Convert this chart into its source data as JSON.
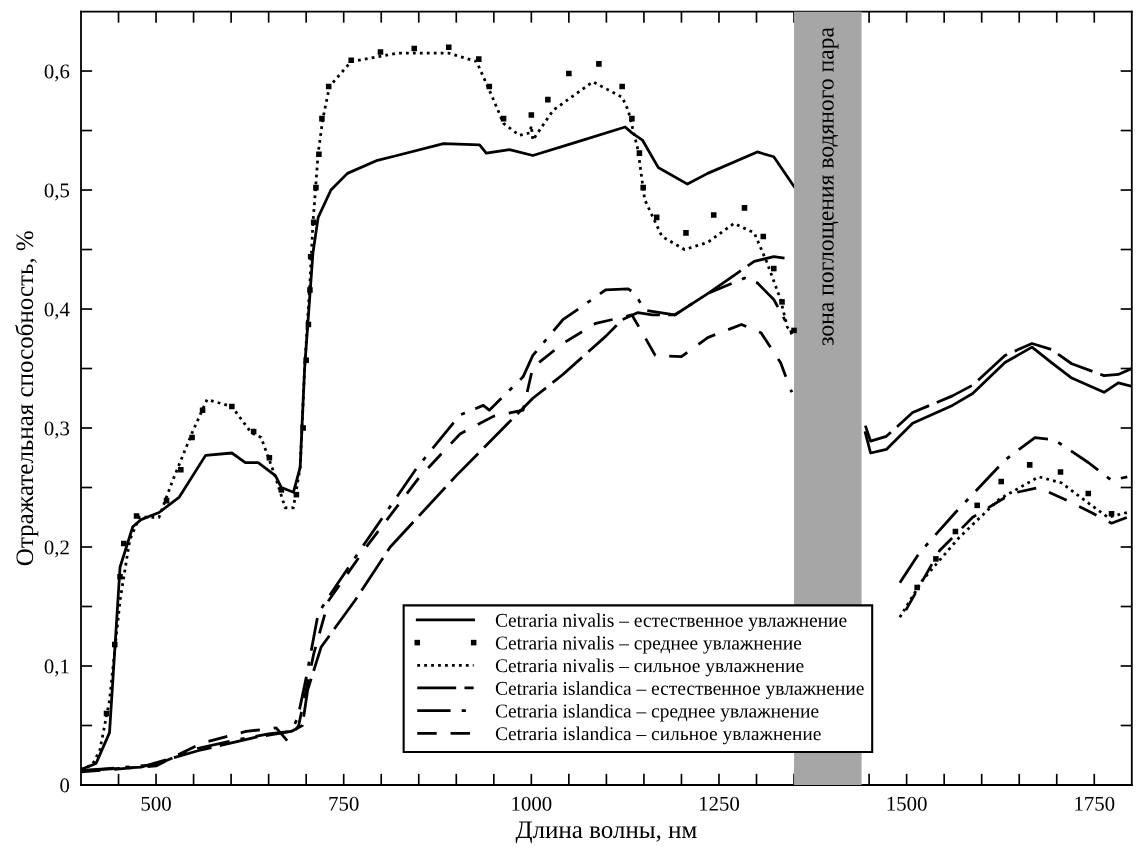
{
  "chart_data": {
    "type": "line",
    "xlabel": "Длина волны, нм",
    "ylabel": "Отражательная способность, %",
    "xlim": [
      400,
      1800
    ],
    "ylim": [
      0,
      0.65
    ],
    "xticks": [
      {
        "value": 450,
        "label": null
      },
      500,
      {
        "value": 550,
        "label": null
      },
      {
        "value": 600,
        "label": null
      },
      {
        "value": 650,
        "label": null
      },
      {
        "value": 700,
        "label": null
      },
      750,
      {
        "value": 800,
        "label": null
      },
      {
        "value": 850,
        "label": null
      },
      {
        "value": 900,
        "label": null
      },
      {
        "value": 950,
        "label": null
      },
      1000,
      {
        "value": 1050,
        "label": null
      },
      {
        "value": 1100,
        "label": null
      },
      {
        "value": 1150,
        "label": null
      },
      {
        "value": 1200,
        "label": null
      },
      1250,
      {
        "value": 1300,
        "label": null
      },
      {
        "value": 1350,
        "label": null
      },
      {
        "value": 1400,
        "label": null
      },
      {
        "value": 1450,
        "label": null
      },
      1500,
      {
        "value": 1550,
        "label": null
      },
      {
        "value": 1600,
        "label": null
      },
      {
        "value": 1650,
        "label": null
      },
      {
        "value": 1700,
        "label": null
      },
      1750
    ],
    "yticks": [
      0,
      {
        "value": 0.05,
        "label": null
      },
      {
        "value": 0.1,
        "label": "0,1"
      },
      {
        "value": 0.15,
        "label": null
      },
      {
        "value": 0.2,
        "label": "0,2"
      },
      {
        "value": 0.25,
        "label": null
      },
      {
        "value": 0.3,
        "label": "0,3"
      },
      {
        "value": 0.35,
        "label": null
      },
      {
        "value": 0.4,
        "label": "0,4"
      },
      {
        "value": 0.45,
        "label": null
      },
      {
        "value": 0.5,
        "label": "0,5"
      },
      {
        "value": 0.55,
        "label": null
      },
      {
        "value": 0.6,
        "label": "0,6"
      }
    ],
    "grid": false,
    "legend": "bottom",
    "bands": [
      {
        "axis": "x",
        "from": 1350,
        "to": 1440,
        "label": "зона поглощения водяного пара",
        "color": "#a6a6a6"
      }
    ],
    "series": [
      {
        "name": "Cetraria nivalis – естественное увлажнение",
        "color": "#000000",
        "line_style": "solid",
        "marker": "none",
        "x": [
          400,
          420,
          438,
          452,
          469,
          480,
          504,
          531,
          566,
          601,
          619,
          636,
          659,
          667,
          683,
          692,
          698,
          709,
          716,
          733,
          755,
          795,
          821,
          883,
          931,
          940,
          971,
          1002,
          1059,
          1125,
          1134,
          1148,
          1169,
          1208,
          1235,
          1301,
          1323,
          1350,
          1400,
          1445,
          1452,
          1473,
          1508,
          1561,
          1588,
          1631,
          1667,
          1693,
          1720,
          1763,
          1782,
          1800
        ],
        "values": [
          0.013,
          0.018,
          0.044,
          0.183,
          0.217,
          0.223,
          0.229,
          0.242,
          0.277,
          0.279,
          0.271,
          0.271,
          0.26,
          0.25,
          0.246,
          0.267,
          0.351,
          0.447,
          0.477,
          0.5,
          0.514,
          0.525,
          0.529,
          0.539,
          0.538,
          0.531,
          0.534,
          0.529,
          0.54,
          0.553,
          0.548,
          0.542,
          0.519,
          0.505,
          0.514,
          0.532,
          0.528,
          0.503,
          null,
          0.296,
          0.279,
          0.282,
          0.304,
          0.319,
          0.329,
          0.355,
          0.368,
          0.355,
          0.342,
          0.33,
          0.338,
          0.335
        ]
      },
      {
        "name": "Cetraria nivalis – среднее увлажнение",
        "type": "scatter",
        "color": "#000000",
        "marker": "square",
        "x": [
          434,
          445,
          452,
          457,
          474,
          514,
          533,
          548,
          562,
          601,
          630,
          651,
          667,
          687,
          696,
          700,
          703,
          705,
          706,
          710,
          713,
          717,
          721,
          730,
          760,
          799,
          844,
          890,
          930,
          944,
          963,
          1000,
          1022,
          1050,
          1090,
          1121,
          1134,
          1144,
          1149,
          1167,
          1206,
          1243,
          1284,
          1309,
          1323,
          1334,
          1350,
          1514,
          1539,
          1565,
          1594,
          1626,
          1664,
          1705,
          1742,
          1773
        ],
        "values": [
          0.06,
          0.118,
          0.175,
          0.203,
          0.226,
          0.239,
          0.265,
          0.292,
          0.315,
          0.318,
          0.297,
          0.275,
          0.248,
          0.244,
          0.3,
          0.357,
          0.387,
          0.416,
          0.444,
          0.473,
          0.502,
          0.53,
          0.56,
          0.587,
          0.609,
          0.616,
          0.619,
          0.62,
          0.61,
          0.587,
          0.56,
          0.563,
          0.576,
          0.598,
          0.606,
          0.587,
          0.56,
          0.531,
          0.502,
          0.477,
          0.464,
          0.479,
          0.485,
          0.461,
          0.434,
          0.406,
          0.382,
          0.166,
          0.19,
          0.213,
          0.235,
          0.255,
          0.269,
          0.263,
          0.245,
          0.228
        ]
      },
      {
        "name": "Cetraria nivalis – сильное увлажнение",
        "color": "#000000",
        "line_style": "dotted",
        "marker": "none",
        "x": [
          400,
          415,
          425,
          438,
          452,
          465,
          478,
          504,
          521,
          548,
          568,
          601,
          627,
          640,
          659,
          672,
          683,
          692,
          698,
          705,
          709,
          716,
          722,
          731,
          760,
          821,
          890,
          927,
          944,
          963,
          984,
          998,
          1000,
          1002,
          1029,
          1082,
          1121,
          1129,
          1142,
          1151,
          1174,
          1204,
          1235,
          1270,
          1297,
          1314,
          1332,
          1341,
          1350,
          1400,
          1491,
          1521,
          1570,
          1623,
          1676,
          1706,
          1742,
          1768,
          1794
        ],
        "values": [
          0.013,
          0.017,
          0.029,
          0.071,
          0.155,
          0.206,
          0.225,
          0.225,
          0.254,
          0.296,
          0.324,
          0.318,
          0.296,
          0.292,
          0.259,
          0.233,
          0.233,
          0.267,
          0.351,
          0.422,
          0.472,
          0.531,
          0.559,
          0.587,
          0.608,
          0.615,
          0.615,
          0.608,
          0.584,
          0.556,
          0.546,
          0.548,
          0.554,
          0.542,
          0.567,
          0.591,
          0.578,
          0.567,
          0.534,
          0.492,
          0.461,
          0.45,
          0.456,
          0.472,
          0.464,
          0.439,
          0.408,
          0.385,
          0.376,
          null,
          0.141,
          0.172,
          0.208,
          0.24,
          0.259,
          0.254,
          0.237,
          0.225,
          0.229
        ]
      },
      {
        "name": "Cetraria islandica – естественное увлажнение",
        "color": "#000000",
        "line_style": "longdash",
        "marker": "none",
        "x": [
          400,
          480,
          557,
          632,
          680,
          695,
          702,
          720,
          765,
          812,
          900,
          1002,
          1042,
          1099,
          1121,
          1142,
          1161,
          1191,
          1235,
          1274,
          1297,
          1323,
          1347,
          1400,
          1445,
          1452,
          1473,
          1508,
          1561,
          1588,
          1631,
          1667,
          1693,
          1720,
          1763,
          1782,
          1800
        ],
        "values": [
          0.012,
          0.015,
          0.029,
          0.04,
          0.045,
          0.05,
          0.08,
          0.116,
          0.155,
          0.2,
          0.26,
          0.325,
          0.345,
          0.377,
          0.391,
          0.397,
          0.395,
          0.395,
          0.413,
          0.43,
          0.44,
          0.444,
          0.442,
          null,
          0.302,
          0.289,
          0.293,
          0.313,
          0.327,
          0.336,
          0.361,
          0.371,
          0.366,
          0.354,
          0.344,
          0.345,
          0.35
        ]
      },
      {
        "name": "Cetraria islandica – среднее увлажнение",
        "color": "#000000",
        "line_style": "dashdot",
        "marker": "none",
        "x": [
          400,
          500,
          550,
          600,
          650,
          680,
          689,
          700,
          716,
          733,
          778,
          848,
          905,
          936,
          944,
          989,
          1002,
          1042,
          1099,
          1129,
          1138,
          1151,
          1191,
          1235,
          1284,
          1301,
          1323,
          1347,
          1400,
          1491,
          1517,
          1565,
          1631,
          1671,
          1697,
          1742,
          1773,
          1794
        ],
        "values": [
          0.012,
          0.017,
          0.03,
          0.037,
          0.043,
          0.045,
          0.057,
          0.09,
          0.144,
          0.161,
          0.203,
          0.267,
          0.311,
          0.319,
          0.315,
          0.343,
          0.361,
          0.391,
          0.416,
          0.417,
          0.413,
          0.399,
          0.395,
          0.413,
          0.426,
          0.422,
          0.408,
          0.38,
          null,
          0.17,
          0.195,
          0.229,
          0.273,
          0.292,
          0.29,
          0.271,
          0.256,
          0.259
        ]
      },
      {
        "name": "Cetraria islandica – сильное увлажнение",
        "color": "#000000",
        "line_style": "dashed",
        "marker": "none",
        "x": [
          400,
          500,
          560,
          620,
          660,
          675,
          690,
          710,
          730,
          780,
          850,
          905,
          950,
          989,
          1002,
          1042,
          1086,
          1121,
          1134,
          1148,
          1165,
          1200,
          1235,
          1280,
          1306,
          1332,
          1347,
          1400,
          1499,
          1544,
          1588,
          1640,
          1676,
          1711,
          1746,
          1773,
          1794
        ],
        "values": [
          0.011,
          0.016,
          0.035,
          0.045,
          0.048,
          0.037,
          0.05,
          0.11,
          0.155,
          0.2,
          0.258,
          0.295,
          0.31,
          0.315,
          0.351,
          0.371,
          0.388,
          0.393,
          0.395,
          0.38,
          0.361,
          0.36,
          0.376,
          0.387,
          0.38,
          0.355,
          0.33,
          null,
          0.147,
          0.197,
          0.225,
          0.245,
          0.25,
          0.24,
          0.229,
          0.22,
          0.225
        ]
      }
    ]
  }
}
